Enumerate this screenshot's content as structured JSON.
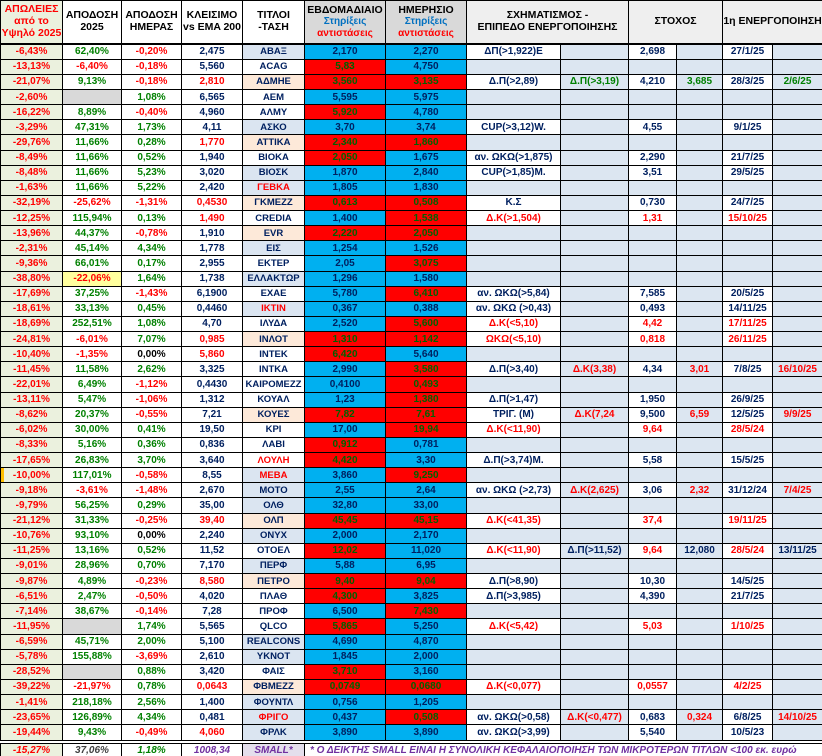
{
  "header": {
    "losses": "ΑΠΩΛΕΙΕΣ\nαπό το\nΥψηλό 2025",
    "return_2025": "ΑΠΟΔΟΣΗ\n2025",
    "return_day": "ΑΠΟΔΟΣΗ\nΗΜΕΡΑΣ",
    "close_vs_ema": "ΚΛΕΙΣΙΜΟ\nvs EMA 200",
    "titles_trend": "ΤΙΤΛΟΙ\n-ΤΑΣΗ",
    "weekly_title": "ΕΒΔΟΜΑΔΙΑΙΟ",
    "daily_title": "ΗΜΕΡΗΣΙΟ",
    "support_label": "Στηρίξεις",
    "resistance_label": "αντιστάσεις",
    "formation": "ΣΧΗΜΑΤΙΣΜΟΣ -\nΕΠΙΠΕΔΟ ΕΝΕΡΓΟΠΟΙΗΣΗΣ",
    "target": "ΣΤΟΧΟΣ",
    "activation": "1η ΕΝΕΡΓΟΠΟΙΗΣΗ"
  },
  "colors": {
    "positive": "#008000",
    "negative": "#ff0000",
    "navy": "#002060",
    "support_bg": "#00b0f0",
    "resistance_bg": "#ff0000",
    "text_on_red": "#006100",
    "uptrend_ticker_bg": "#dbe5f1",
    "downtrend_ticker_bg": "#fde9d9",
    "losses_col_bg": "#ebf1de",
    "blank_bg": "#d9d9d9",
    "pale_bg": "#dce6f1",
    "yellow_bg": "#ffff9e",
    "purple": "#7030a0",
    "lavender_bg": "#e4dfec"
  },
  "rows": [
    {
      "t": "ΑΒΑΞ",
      "tb": "u",
      "tc": "b",
      "loss": "-6,43%",
      "y": "62,40%",
      "yc": "g",
      "d": "-0,20%",
      "dc": "r",
      "cl": "2,475",
      "clc": "b",
      "w": "2,170",
      "wc": "B",
      "dl": "2,270",
      "dlc": "B",
      "f1": "ΔΠ(>1,922)Ε",
      "f1c": "b",
      "t1": "2,698",
      "t1c": "b",
      "a1": "27/1/25",
      "a1c": "b"
    },
    {
      "t": "ACAG",
      "tb": "w",
      "tc": "b",
      "loss": "-13,13%",
      "y": "-6,40%",
      "yc": "r",
      "d": "-0,18%",
      "dc": "r",
      "cl": "5,560",
      "clc": "b",
      "w": "5,83",
      "wc": "R",
      "dl": "4,750",
      "dlc": "B"
    },
    {
      "t": "ΑΔΜΗΕ",
      "tb": "d",
      "tc": "b",
      "loss": "-21,07%",
      "y": "9,13%",
      "yc": "g",
      "d": "-0,18%",
      "dc": "r",
      "cl": "2,810",
      "clc": "r",
      "w": "3,560",
      "wc": "R",
      "dl": "3,135",
      "dlc": "R",
      "f1": "Δ.Π(>2,89)",
      "f1c": "b",
      "f2": "Δ.Π(>3,19)",
      "f2c": "g",
      "t1": "4,210",
      "t1c": "b",
      "t2": "3,685",
      "t2c": "g",
      "a1": "28/3/25",
      "a1c": "b",
      "a2": "2/6/25",
      "a2c": "g"
    },
    {
      "t": "ΑΕΜ",
      "tb": "w",
      "tc": "b",
      "loss": "-2,60%",
      "y": null,
      "d": "1,08%",
      "dc": "g",
      "cl": "6,565",
      "clc": "b",
      "w": "5,595",
      "wc": "B",
      "dl": "5,975",
      "dlc": "B"
    },
    {
      "t": "ΑΛΜΥ",
      "tb": "w",
      "tc": "b",
      "loss": "-16,22%",
      "y": "8,89%",
      "yc": "g",
      "d": "-0,40%",
      "dc": "r",
      "cl": "4,960",
      "clc": "b",
      "w": "5,920",
      "wc": "R",
      "dl": "4,780",
      "dlc": "B"
    },
    {
      "t": "ΑΣΚΟ",
      "tb": "u",
      "tc": "b",
      "loss": "-3,29%",
      "y": "47,31%",
      "yc": "g",
      "d": "1,73%",
      "dc": "g",
      "cl": "4,11",
      "clc": "b",
      "w": "3,70",
      "wc": "B",
      "dl": "3,74",
      "dlc": "B",
      "f1": "CUP(>3,12)W.",
      "f1c": "b",
      "t1": "4,55",
      "t1c": "b",
      "a1": "9/1/25",
      "a1c": "b"
    },
    {
      "t": "ΑΤΤΙΚΑ",
      "tb": "d",
      "tc": "b",
      "loss": "-29,76%",
      "y": "11,66%",
      "yc": "g",
      "d": "0,28%",
      "dc": "g",
      "cl": "1,770",
      "clc": "r",
      "w": "2,340",
      "wc": "R",
      "dl": "1,860",
      "dlc": "R"
    },
    {
      "t": "ΒΙΟΚΑ",
      "tb": "w",
      "tc": "b",
      "loss": "-8,49%",
      "y": "11,66%",
      "yc": "g",
      "d": "0,52%",
      "dc": "g",
      "cl": "1,940",
      "clc": "b",
      "w": "2,050",
      "wc": "R",
      "dl": "1,675",
      "dlc": "B",
      "f1": "αν. ΩΚΩ(>1,875)",
      "f1c": "b",
      "t1": "2,290",
      "t1c": "b",
      "a1": "21/7/25",
      "a1c": "b"
    },
    {
      "t": "ΒΙΟΣΚ",
      "tb": "u",
      "tc": "b",
      "loss": "-8,48%",
      "y": "11,66%",
      "yc": "g",
      "d": "5,23%",
      "dc": "g",
      "cl": "3,020",
      "clc": "b",
      "w": "1,870",
      "wc": "B",
      "dl": "2,840",
      "dlc": "B",
      "f1": "CUP(>1,85)Μ.",
      "f1c": "b",
      "t1": "3,51",
      "t1c": "b",
      "a1": "29/5/25",
      "a1c": "b"
    },
    {
      "t": "ΓΕΒΚΑ",
      "tb": "u",
      "tc": "r",
      "loss": "-1,63%",
      "y": "11,66%",
      "yc": "g",
      "d": "5,22%",
      "dc": "g",
      "cl": "2,420",
      "clc": "b",
      "w": "1,805",
      "wc": "B",
      "dl": "1,830",
      "dlc": "B"
    },
    {
      "t": "ΓΚΜΕΖΖ",
      "tb": "d",
      "tc": "b",
      "loss": "-32,19%",
      "y": "-25,62%",
      "yc": "r",
      "d": "-1,31%",
      "dc": "r",
      "cl": "0,4530",
      "clc": "r",
      "w": "0,613",
      "wc": "R",
      "dl": "0,508",
      "dlc": "R",
      "f1": "Κ.Σ",
      "f1c": "b",
      "t1": "0,730",
      "t1c": "b",
      "a1": "24/7/25",
      "a1c": "b"
    },
    {
      "t": "CREDIA",
      "tb": "w",
      "tc": "b",
      "loss": "-12,25%",
      "y": "115,94%",
      "yc": "g",
      "d": "0,13%",
      "dc": "g",
      "cl": "1,490",
      "clc": "r",
      "w": "1,400",
      "wc": "B",
      "dl": "1,538",
      "dlc": "R",
      "f1": "Δ.Κ(>1,504)",
      "f1c": "r",
      "t1": "1,31",
      "t1c": "r",
      "a1": "15/10/25",
      "a1c": "r"
    },
    {
      "t": "EVR",
      "tb": "d",
      "tc": "b",
      "loss": "-13,96%",
      "y": "44,37%",
      "yc": "g",
      "d": "-0,78%",
      "dc": "r",
      "cl": "1,910",
      "clc": "b",
      "w": "2,220",
      "wc": "R",
      "dl": "2,050",
      "dlc": "R"
    },
    {
      "t": "ΕΙΣ",
      "tb": "u",
      "tc": "b",
      "loss": "-2,31%",
      "y": "45,14%",
      "yc": "g",
      "d": "4,34%",
      "dc": "g",
      "cl": "1,778",
      "clc": "b",
      "w": "1,254",
      "wc": "B",
      "dl": "1,526",
      "dlc": "B"
    },
    {
      "t": "ΕΚΤΕΡ",
      "tb": "w",
      "tc": "b",
      "loss": "-9,36%",
      "y": "66,01%",
      "yc": "g",
      "d": "0,17%",
      "dc": "g",
      "cl": "2,955",
      "clc": "b",
      "w": "2,05",
      "wc": "B",
      "dl": "3,075",
      "dlc": "R"
    },
    {
      "t": "ΕΛΛΑΚΤΩΡ",
      "tb": "u",
      "tc": "b",
      "loss": "-38,80%",
      "y": "-22,06%",
      "yc": "y",
      "d": "1,64%",
      "dc": "g",
      "cl": "1,738",
      "clc": "b",
      "w": "1,296",
      "wc": "B",
      "dl": "1,580",
      "dlc": "B"
    },
    {
      "t": "ΕΧΑΕ",
      "tb": "w",
      "tc": "b",
      "loss": "-17,69%",
      "y": "37,25%",
      "yc": "g",
      "d": "-1,43%",
      "dc": "r",
      "cl": "6,1900",
      "clc": "b",
      "w": "5,780",
      "wc": "B",
      "dl": "6,410",
      "dlc": "R",
      "f1": "αν. ΩΚΩ(>5,84)",
      "f1c": "b",
      "t1": "7,585",
      "t1c": "b",
      "a1": "20/5/25",
      "a1c": "b"
    },
    {
      "t": "ΙΚΤΙΝ",
      "tb": "u",
      "tc": "r",
      "loss": "-18,61%",
      "y": "33,13%",
      "yc": "g",
      "d": "0,45%",
      "dc": "g",
      "cl": "0,4460",
      "clc": "b",
      "w": "0,367",
      "wc": "B",
      "dl": "0,388",
      "dlc": "B",
      "f1": "αν. ΩΚΩ (>0,43)",
      "f1c": "b",
      "t1": "0,493",
      "t1c": "b",
      "a1": "14/11/25",
      "a1c": "b"
    },
    {
      "t": "ΙΛΥΔΑ",
      "tb": "w",
      "tc": "b",
      "loss": "-18,69%",
      "y": "252,51%",
      "yc": "g",
      "d": "1,08%",
      "dc": "g",
      "cl": "4,70",
      "clc": "b",
      "w": "2,520",
      "wc": "B",
      "dl": "5,600",
      "dlc": "R",
      "f1": "Δ.Κ(<5,10)",
      "f1c": "r",
      "t1": "4,42",
      "t1c": "r",
      "a1": "17/11/25",
      "a1c": "r"
    },
    {
      "t": "ΙΝΛΟΤ",
      "tb": "d",
      "tc": "b",
      "loss": "-24,81%",
      "y": "-6,01%",
      "yc": "r",
      "d": "7,07%",
      "dc": "g",
      "cl": "0,985",
      "clc": "r",
      "w": "1,310",
      "wc": "R",
      "dl": "1,142",
      "dlc": "R",
      "f1": "ΩΚΩ(<5,10)",
      "f1c": "r",
      "t1": "0,818",
      "t1c": "r",
      "a1": "26/11/25",
      "a1c": "r"
    },
    {
      "t": "ΙΝΤΕΚ",
      "tb": "w",
      "tc": "b",
      "loss": "-10,40%",
      "y": "-1,35%",
      "yc": "r",
      "d": "0,00%",
      "dc": "k",
      "cl": "5,860",
      "clc": "r",
      "w": "6,420",
      "wc": "R",
      "dl": "5,640",
      "dlc": "B"
    },
    {
      "t": "ΙΝΤΚΑ",
      "tb": "w",
      "tc": "b",
      "loss": "-11,45%",
      "y": "11,58%",
      "yc": "g",
      "d": "2,62%",
      "dc": "g",
      "cl": "3,325",
      "clc": "b",
      "w": "2,990",
      "wc": "B",
      "dl": "3,580",
      "dlc": "R",
      "f1": "Δ.Π(>3,40)",
      "f1c": "b",
      "f2": "Δ.Κ(3,38)",
      "f2c": "r",
      "t1": "4,34",
      "t1c": "b",
      "t2": "3,01",
      "t2c": "r",
      "a1": "7/8/25",
      "a1c": "b",
      "a2": "16/10/25",
      "a2c": "r"
    },
    {
      "t": "ΚΑΙΡΟΜΕΖΖ",
      "tb": "w",
      "tc": "b",
      "loss": "-22,01%",
      "y": "6,49%",
      "yc": "g",
      "d": "-1,12%",
      "dc": "r",
      "cl": "0,4430",
      "clc": "b",
      "w": "0,4100",
      "wc": "B",
      "dl": "0,493",
      "dlc": "R"
    },
    {
      "t": "ΚΟΥΑΛ",
      "tb": "w",
      "tc": "b",
      "loss": "-13,11%",
      "y": "5,47%",
      "yc": "g",
      "d": "-1,06%",
      "dc": "r",
      "cl": "1,312",
      "clc": "b",
      "w": "1,23",
      "wc": "B",
      "dl": "1,380",
      "dlc": "R",
      "f1": "Δ.Π(>1,47)",
      "f1c": "b",
      "t1": "1,950",
      "t1c": "b",
      "a1": "26/9/25",
      "a1c": "b"
    },
    {
      "t": "ΚΟΥΕΣ",
      "tb": "d",
      "tc": "b",
      "loss": "-8,62%",
      "y": "20,37%",
      "yc": "g",
      "d": "-0,55%",
      "dc": "r",
      "cl": "7,21",
      "clc": "b",
      "w": "7,82",
      "wc": "R",
      "dl": "7,61",
      "dlc": "R",
      "f1": "ΤΡΙΓ. (Μ)",
      "f1c": "b",
      "f2": "Δ.Κ(7,24",
      "f2c": "r",
      "t1": "9,500",
      "t1c": "b",
      "t2": "6,59",
      "t2c": "r",
      "a1": "12/5/25",
      "a1c": "b",
      "a2": "9/9/25",
      "a2c": "r"
    },
    {
      "t": "ΚΡΙ",
      "tb": "w",
      "tc": "b",
      "loss": "-6,02%",
      "y": "30,00%",
      "yc": "g",
      "d": "0,41%",
      "dc": "g",
      "cl": "19,50",
      "clc": "b",
      "w": "17,00",
      "wc": "B",
      "dl": "19,94",
      "dlc": "R",
      "f1": "Δ.Κ(<11,90)",
      "f1c": "r",
      "t1": "9,64",
      "t1c": "r",
      "a1": "28/5/24",
      "a1c": "r"
    },
    {
      "t": "ΛΑΒΙ",
      "tb": "w",
      "tc": "b",
      "loss": "-8,33%",
      "y": "5,16%",
      "yc": "g",
      "d": "0,36%",
      "dc": "g",
      "cl": "0,836",
      "clc": "b",
      "w": "0,912",
      "wc": "R",
      "dl": "0,781",
      "dlc": "B"
    },
    {
      "t": "ΛΟΥΛΗ",
      "tb": "w",
      "tc": "r",
      "loss": "-17,65%",
      "y": "26,83%",
      "yc": "g",
      "d": "3,70%",
      "dc": "g",
      "cl": "3,640",
      "clc": "b",
      "w": "4,420",
      "wc": "R",
      "dl": "3,30",
      "dlc": "B",
      "f1": "Δ.Π(>3,74)Μ.",
      "f1c": "b",
      "t1": "5,58",
      "t1c": "b",
      "a1": "15/5/25",
      "a1c": "b"
    },
    {
      "t": "ΜΕΒΑ",
      "tb": "u",
      "tc": "r",
      "mark": true,
      "loss": "-10,00%",
      "y": "117,01%",
      "yc": "g",
      "d": "-0,58%",
      "dc": "r",
      "cl": "8,55",
      "clc": "b",
      "w": "3,860",
      "wc": "B",
      "dl": "9,250",
      "dlc": "R"
    },
    {
      "t": "ΜΟΤΟ",
      "tb": "u",
      "tc": "b",
      "loss": "-9,18%",
      "y": "-3,61%",
      "yc": "r",
      "d": "-1,48%",
      "dc": "r",
      "cl": "2,670",
      "clc": "b",
      "w": "2,55",
      "wc": "B",
      "dl": "2,64",
      "dlc": "B",
      "f1": "αν. ΩΚΩ (>2,73)",
      "f1c": "b",
      "f2": "Δ.Κ(2,625)",
      "f2c": "r",
      "t1": "3,06",
      "t1c": "b",
      "t2": "2,32",
      "t2c": "r",
      "a1": "31/12/24",
      "a1c": "b",
      "a2": "7/4/25",
      "a2c": "r"
    },
    {
      "t": "ΟΛΘ",
      "tb": "u",
      "tc": "b",
      "loss": "-9,79%",
      "y": "56,25%",
      "yc": "g",
      "d": "0,29%",
      "dc": "g",
      "cl": "35,00",
      "clc": "b",
      "w": "32,80",
      "wc": "B",
      "dl": "33,00",
      "dlc": "B"
    },
    {
      "t": "ΟΛΠ",
      "tb": "d",
      "tc": "b",
      "loss": "-21,12%",
      "y": "31,33%",
      "yc": "g",
      "d": "-0,25%",
      "dc": "r",
      "cl": "39,40",
      "clc": "r",
      "w": "45,45",
      "wc": "R",
      "dl": "45,15",
      "dlc": "R",
      "f1": "Δ.Κ(<41,35)",
      "f1c": "r",
      "t1": "37,4",
      "t1c": "r",
      "a1": "19/11/25",
      "a1c": "r"
    },
    {
      "t": "ΟΝΥΧ",
      "tb": "u",
      "tc": "b",
      "loss": "-10,76%",
      "y": "93,10%",
      "yc": "g",
      "d": "0,00%",
      "dc": "k",
      "cl": "2,240",
      "clc": "b",
      "w": "2,000",
      "wc": "B",
      "dl": "2,170",
      "dlc": "B"
    },
    {
      "t": "ΟΤΟΕΛ",
      "tb": "w",
      "tc": "b",
      "loss": "-11,25%",
      "y": "13,16%",
      "yc": "g",
      "d": "0,52%",
      "dc": "g",
      "cl": "11,52",
      "clc": "b",
      "w": "12,02",
      "wc": "R",
      "dl": "11,020",
      "dlc": "B",
      "f1": "Δ.Κ(<11,90)",
      "f1c": "r",
      "f2": "Δ.Π(>11,52)",
      "f2c": "b",
      "t1": "9,64",
      "t1c": "r",
      "t2": "12,080",
      "t2c": "b",
      "a1": "28/5/24",
      "a1c": "r",
      "a2": "13/11/25",
      "a2c": "b"
    },
    {
      "t": "ΠΕΡΦ",
      "tb": "u",
      "tc": "b",
      "loss": "-9,01%",
      "y": "28,96%",
      "yc": "g",
      "d": "0,70%",
      "dc": "g",
      "cl": "7,170",
      "clc": "b",
      "w": "5,88",
      "wc": "B",
      "dl": "6,95",
      "dlc": "B"
    },
    {
      "t": "ΠΕΤΡΟ",
      "tb": "d",
      "tc": "b",
      "loss": "-9,87%",
      "y": "4,89%",
      "yc": "g",
      "d": "-0,23%",
      "dc": "r",
      "cl": "8,580",
      "clc": "r",
      "w": "9,40",
      "wc": "R",
      "dl": "9,04",
      "dlc": "R",
      "f1": "Δ.Π(>8,90)",
      "f1c": "b",
      "t1": "10,30",
      "t1c": "b",
      "a1": "14/5/25",
      "a1c": "b"
    },
    {
      "t": "ΠΛΑΘ",
      "tb": "w",
      "tc": "b",
      "loss": "-6,51%",
      "y": "2,47%",
      "yc": "g",
      "d": "-0,50%",
      "dc": "r",
      "cl": "4,020",
      "clc": "b",
      "w": "4,300",
      "wc": "R",
      "dl": "3,825",
      "dlc": "B",
      "f1": "Δ.Π(>3,985)",
      "f1c": "b",
      "t1": "4,390",
      "t1c": "b",
      "a1": "21/7/25",
      "a1c": "b"
    },
    {
      "t": "ΠΡΟΦ",
      "tb": "w",
      "tc": "b",
      "loss": "-7,14%",
      "y": "38,67%",
      "yc": "g",
      "d": "-0,14%",
      "dc": "r",
      "cl": "7,28",
      "clc": "b",
      "w": "6,500",
      "wc": "B",
      "dl": "7,430",
      "dlc": "R"
    },
    {
      "t": "QLCO",
      "tb": "w",
      "tc": "b",
      "loss": "-11,95%",
      "y": null,
      "d": "1,74%",
      "dc": "g",
      "cl": "5,565",
      "clc": "b",
      "w": "5,865",
      "wc": "R",
      "dl": "5,250",
      "dlc": "B",
      "f1": "Δ.Κ(<5,42)",
      "f1c": "r",
      "t1": "5,03",
      "t1c": "r",
      "a1": "1/10/25",
      "a1c": "r"
    },
    {
      "t": "REALCONS",
      "tb": "u",
      "tc": "b",
      "loss": "-6,59%",
      "y": "45,71%",
      "yc": "g",
      "d": "2,00%",
      "dc": "g",
      "cl": "5,100",
      "clc": "b",
      "w": "4,690",
      "wc": "B",
      "dl": "4,870",
      "dlc": "B"
    },
    {
      "t": "ΥΚΝΟΤ",
      "tb": "u",
      "tc": "b",
      "loss": "-5,78%",
      "y": "155,88%",
      "yc": "g",
      "d": "-3,69%",
      "dc": "r",
      "cl": "2,610",
      "clc": "b",
      "w": "1,845",
      "wc": "B",
      "dl": "2,000",
      "dlc": "B"
    },
    {
      "t": "ΦΑΙΣ",
      "tb": "w",
      "tc": "b",
      "loss": "-28,52%",
      "y": null,
      "d": "0,88%",
      "dc": "g",
      "cl": "3,420",
      "clc": "b",
      "w": "3,710",
      "wc": "R",
      "dl": "3,160",
      "dlc": "B"
    },
    {
      "t": "ΦΒΜΕΖΖ",
      "tb": "d",
      "tc": "b",
      "loss": "-39,22%",
      "y": "-21,97%",
      "yc": "r",
      "d": "0,78%",
      "dc": "g",
      "cl": "0,0643",
      "clc": "r",
      "w": "0,0749",
      "wc": "R",
      "dl": "0,0680",
      "dlc": "R",
      "f1": "Δ.Κ(<0,077)",
      "f1c": "r",
      "t1": "0,0557",
      "t1c": "r",
      "a1": "4/2/25",
      "a1c": "r"
    },
    {
      "t": "ΦΟΥΝΤΛ",
      "tb": "u",
      "tc": "b",
      "loss": "-1,41%",
      "y": "218,18%",
      "yc": "g",
      "d": "2,56%",
      "dc": "g",
      "cl": "1,400",
      "clc": "b",
      "w": "0,756",
      "wc": "B",
      "dl": "1,205",
      "dlc": "B"
    },
    {
      "t": "ΦΡΙΓΟ",
      "tb": "u",
      "tc": "r",
      "loss": "-23,65%",
      "y": "126,89%",
      "yc": "g",
      "d": "4,34%",
      "dc": "g",
      "cl": "0,481",
      "clc": "b",
      "w": "0,437",
      "wc": "B",
      "dl": "0,508",
      "dlc": "R",
      "f1": "αν. ΩΚΩ(>0,58)",
      "f1c": "b",
      "f2": "Δ.Κ(<0,477)",
      "f2c": "r",
      "t1": "0,683",
      "t1c": "b",
      "t2": "0,324",
      "t2c": "r",
      "a1": "6/8/25",
      "a1c": "b",
      "a2": "14/10/25",
      "a2c": "r"
    },
    {
      "t": "ΦΡΛΚ",
      "tb": "u",
      "tc": "b",
      "loss": "-19,44%",
      "y": "9,43%",
      "yc": "g",
      "d": "-0,49%",
      "dc": "r",
      "cl": "4,060",
      "clc": "r",
      "w": "3,890",
      "wc": "B",
      "dl": "3,890",
      "dlc": "B",
      "f1": "αν. ΩΚΩ(>3,99)",
      "f1c": "b",
      "t1": "5,540",
      "t1c": "b",
      "a1": "10/5/23",
      "a1c": "b"
    }
  ],
  "footer": {
    "loss": "-15,27%",
    "return_2025": "37,06%",
    "return_day": "1,18%",
    "index_value": "1008,34",
    "label": "SMALL*",
    "note": "* Ο ΔΕΙΚΤΗΣ SMALL ΕΙΝΑΙ Η ΣΥΝΟΛΙΚΗ ΚΕΦΑΛΑΙΟΠΟΙΗΣΗ ΤΩΝ ΜΙΚΡΟΤΕΡΩΝ ΤΙΤΛΩΝ <100 εκ. ευρώ"
  }
}
